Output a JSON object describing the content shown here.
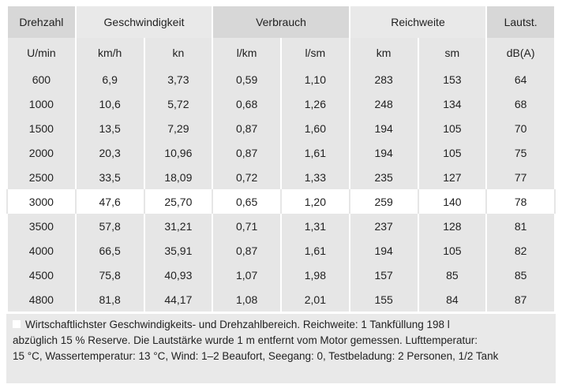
{
  "table": {
    "groups": [
      {
        "label": "Drehzahl",
        "span": 1
      },
      {
        "label": "Geschwindigkeit",
        "span": 2
      },
      {
        "label": "Verbrauch",
        "span": 2
      },
      {
        "label": "Reichweite",
        "span": 2
      },
      {
        "label": "Lautst.",
        "span": 1
      }
    ],
    "units": [
      "U/min",
      "km/h",
      "kn",
      "l/km",
      "l/sm",
      "km",
      "sm",
      "dB(A)"
    ],
    "highlight_row": 5,
    "rows": [
      [
        "600",
        "6,9",
        "3,73",
        "0,59",
        "1,10",
        "283",
        "153",
        "64"
      ],
      [
        "1000",
        "10,6",
        "5,72",
        "0,68",
        "1,26",
        "248",
        "134",
        "68"
      ],
      [
        "1500",
        "13,5",
        "7,29",
        "0,87",
        "1,60",
        "194",
        "105",
        "70"
      ],
      [
        "2000",
        "20,3",
        "10,96",
        "0,87",
        "1,61",
        "194",
        "105",
        "75"
      ],
      [
        "2500",
        "33,5",
        "18,09",
        "0,72",
        "1,33",
        "235",
        "127",
        "77"
      ],
      [
        "3000",
        "47,6",
        "25,70",
        "0,65",
        "1,20",
        "259",
        "140",
        "78"
      ],
      [
        "3500",
        "57,8",
        "31,21",
        "0,71",
        "1,31",
        "237",
        "128",
        "81"
      ],
      [
        "4000",
        "66,5",
        "35,91",
        "0,87",
        "1,61",
        "194",
        "105",
        "82"
      ],
      [
        "4500",
        "75,8",
        "40,93",
        "1,07",
        "1,98",
        "157",
        "85",
        "85"
      ],
      [
        "4800",
        "81,8",
        "44,17",
        "1,08",
        "2,01",
        "155",
        "84",
        "87"
      ]
    ]
  },
  "note": {
    "lines": [
      "Wirtschaftlichster Geschwindigkeits- und Drehzahlbereich. Reichweite: 1 Tankfüllung 198 l",
      "abzüglich 15 % Reserve. Die Lautstärke wurde 1 m entfernt vom Motor gemessen. Lufttemperatur:",
      "15 °C, Wassertemperatur: 13 °C, Wind: 1–2 Beaufort, Seegang: 0, Testbeladung: 2 Personen, 1/2 Tank"
    ]
  }
}
